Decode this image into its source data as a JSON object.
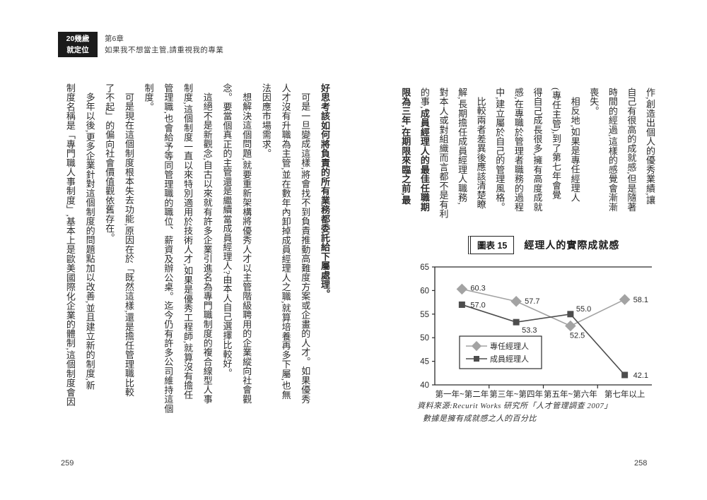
{
  "header": {
    "logo_line1": "20幾歲",
    "logo_line2": "就定位",
    "chapter_no": "第6章",
    "chapter_title": "如果我不想當主管,請重視我的專業"
  },
  "right_page": {
    "page_number": "258",
    "columns": [
      {
        "indent": false,
        "segs": [
          {
            "t": "作,創造出個人的優秀業績,讓",
            "b": false
          }
        ]
      },
      {
        "indent": false,
        "segs": [
          {
            "t": "自己有很高的成就感,但是隨著",
            "b": false
          }
        ]
      },
      {
        "indent": false,
        "segs": [
          {
            "t": "時間的經過,這樣的感覺會漸漸",
            "b": false
          }
        ]
      },
      {
        "indent": false,
        "segs": [
          {
            "t": "喪失。",
            "b": false
          }
        ]
      },
      {
        "indent": true,
        "segs": [
          {
            "t": "相反地,如果是專任經理人",
            "b": false
          }
        ]
      },
      {
        "indent": false,
        "segs": [
          {
            "t": "(專任主管),到了第七年會覺",
            "b": false
          }
        ]
      },
      {
        "indent": false,
        "segs": [
          {
            "t": "得自己成長很多,擁有高度成就",
            "b": false
          }
        ]
      },
      {
        "indent": false,
        "segs": [
          {
            "t": "感,在專職於管理者職務的過程",
            "b": false
          }
        ]
      },
      {
        "indent": false,
        "segs": [
          {
            "t": "中,建立屬於自己的管理風格。",
            "b": false
          }
        ]
      },
      {
        "indent": true,
        "segs": [
          {
            "t": "比較兩者差異後應該清楚瞭",
            "b": false
          }
        ]
      },
      {
        "indent": false,
        "segs": [
          {
            "t": "解,長期擔任成員經理人職務,",
            "b": false
          }
        ]
      },
      {
        "indent": false,
        "segs": [
          {
            "t": "對本人或對組織而言都不是有利",
            "b": false
          }
        ]
      },
      {
        "indent": false,
        "segs": [
          {
            "t": "的事,",
            "b": false
          },
          {
            "t": "成員經理人的最佳任職期",
            "b": true
          }
        ]
      },
      {
        "indent": false,
        "segs": [
          {
            "t": "限為三年,在期限來臨之前,最",
            "b": true
          }
        ]
      }
    ]
  },
  "left_page": {
    "page_number": "259",
    "columns": [
      {
        "indent": false,
        "segs": [
          {
            "t": "好思考該如何將負責的所有業務都委託給下屬處理。",
            "b": true
          }
        ]
      },
      {
        "indent": true,
        "segs": [
          {
            "t": "可是一旦變成這樣,將會找不到負責推動高難度方案或企畫的人才。如果優秀",
            "b": false
          }
        ]
      },
      {
        "indent": false,
        "segs": [
          {
            "t": "人才沒有升職為主管,並在數年內卸掉成員經理人之職,就算培養再多下屬,也無",
            "b": false
          }
        ]
      },
      {
        "indent": false,
        "segs": [
          {
            "t": "法因應市場需求。",
            "b": false
          }
        ]
      },
      {
        "indent": true,
        "segs": [
          {
            "t": "想解決這個問題,就要重新架構將優秀人才以主管階級聘用的企業縱向社會觀",
            "b": false
          }
        ]
      },
      {
        "indent": false,
        "segs": [
          {
            "t": "念。要當個真正的主管還是繼續當成員經理人?由本人自己選擇比較好。",
            "b": false
          }
        ]
      },
      {
        "indent": true,
        "segs": [
          {
            "t": "這絕不是新觀念,自古以來就有許多企業引進名為專門職制度的複合線型人事",
            "b": false
          }
        ]
      },
      {
        "indent": false,
        "segs": [
          {
            "t": "制度,這個制度一直以來特別適用於技術人才,如果是優秀工程師,就算沒有擔任",
            "b": false
          }
        ]
      },
      {
        "indent": false,
        "segs": [
          {
            "t": "管理職,也會給予等同管理職的職位、薪資及辦公桌。迄今仍有許多公司維持這個",
            "b": false
          }
        ]
      },
      {
        "indent": false,
        "segs": [
          {
            "t": "制度。",
            "b": false
          }
        ]
      },
      {
        "indent": true,
        "segs": [
          {
            "t": "可是現在這個制度根本失去功能,原因在於「既然這樣,還是擔任管理職比較",
            "b": false
          }
        ]
      },
      {
        "indent": false,
        "segs": [
          {
            "t": "了不起」的偏向社會價值觀依舊存在。",
            "b": false
          }
        ]
      },
      {
        "indent": true,
        "segs": [
          {
            "t": "多年以後,更多企業針對這個制度的問題點加以改善,並且建立新的制度,新",
            "b": false
          }
        ]
      },
      {
        "indent": false,
        "segs": [
          {
            "t": "制度名稱是「專門職人事制度」,基本上是歐美國際化企業的體制,這個制度會因",
            "b": false
          }
        ]
      }
    ]
  },
  "chart": {
    "tag": "圖表 15",
    "title": "經理人的實際成就感",
    "source_line1": "資料來源:Recurit Works 研究所「人才管理調查 2007」",
    "source_line2": "數據是擁有成就感之人的百分比"
  },
  "chart_data": {
    "type": "line",
    "title": "經理人的實際成就感",
    "categories": [
      "第一年~第二年",
      "第三年~第四年",
      "第五年~第六年",
      "第七年以上"
    ],
    "series": [
      {
        "name": "專任經理人",
        "marker": "diamond",
        "color": "#a3a3a3",
        "values": [
          60.3,
          57.7,
          52.5,
          58.1
        ]
      },
      {
        "name": "成員經理人",
        "marker": "square",
        "color": "#4d4d4d",
        "values": [
          57.0,
          53.3,
          55.0,
          42.1
        ]
      }
    ],
    "ylim": [
      40,
      65
    ],
    "yticks": [
      40,
      45,
      50,
      55,
      60,
      65
    ],
    "xlabel": "",
    "ylabel": "",
    "grid": false,
    "legend_position": "lower-left",
    "axis_color": "#2b2b2b"
  }
}
